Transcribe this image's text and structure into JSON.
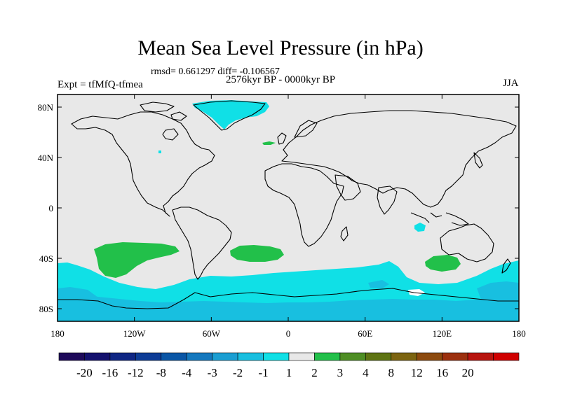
{
  "chart_data": {
    "type": "heatmap",
    "title": "Mean Sea Level Pressure (in hPa)",
    "stats": "rmsd= 0.661297 diff= -0.106567",
    "period": "2576kyr BP - 0000kyr BP",
    "experiment": "Expt = tfMfQ-tfmea",
    "season": "JJA",
    "x_ticks": [
      {
        "value": -180,
        "label": "180"
      },
      {
        "value": -120,
        "label": "120W"
      },
      {
        "value": -60,
        "label": "60W"
      },
      {
        "value": 0,
        "label": "0"
      },
      {
        "value": 60,
        "label": "60E"
      },
      {
        "value": 120,
        "label": "120E"
      },
      {
        "value": 180,
        "label": "180"
      }
    ],
    "y_ticks": [
      {
        "value": 80,
        "label": "80N"
      },
      {
        "value": 40,
        "label": "40N"
      },
      {
        "value": 0,
        "label": "0"
      },
      {
        "value": -40,
        "label": "40S"
      },
      {
        "value": -80,
        "label": "80S"
      }
    ],
    "xlim": [
      -180,
      180
    ],
    "ylim": [
      -90,
      90
    ],
    "colorbar": {
      "levels": [
        "-20",
        "-16",
        "-12",
        "-8",
        "-4",
        "-3",
        "-2",
        "-1",
        "1",
        "2",
        "3",
        "4",
        "8",
        "12",
        "16",
        "20"
      ],
      "colors": [
        "#1e0a5a",
        "#14116e",
        "#0f2684",
        "#0d3c96",
        "#0a56a6",
        "#1478be",
        "#1a9ed2",
        "#18bfe0",
        "#10e0e6",
        "#e8e8e8",
        "#22c04a",
        "#4e8e24",
        "#5e7412",
        "#7c6410",
        "#8c4a0e",
        "#9c300e",
        "#b8140e",
        "#d00000"
      ]
    },
    "anomaly_regions": [
      {
        "name": "greenland-negative",
        "class": "-2 to -1",
        "color": "#10e0e6"
      },
      {
        "name": "southern-ocean-negative",
        "class": "-2 to -1",
        "color": "#10e0e6"
      },
      {
        "name": "antarctic-coast-negative",
        "class": "-3 to -2",
        "color": "#18bfe0"
      },
      {
        "name": "south-pacific-positive",
        "class": "1 to 2",
        "color": "#22c04a"
      },
      {
        "name": "south-atlantic-positive",
        "class": "1 to 2",
        "color": "#22c04a"
      },
      {
        "name": "south-indian-positive",
        "class": "1 to 2",
        "color": "#22c04a"
      },
      {
        "name": "north-atlantic-positive",
        "class": "1 to 2",
        "color": "#22c04a"
      },
      {
        "name": "indonesia-negative",
        "class": "-2 to -1",
        "color": "#10e0e6"
      }
    ]
  },
  "colors": {
    "background": "#e8e8e8",
    "coastline": "#000000"
  }
}
